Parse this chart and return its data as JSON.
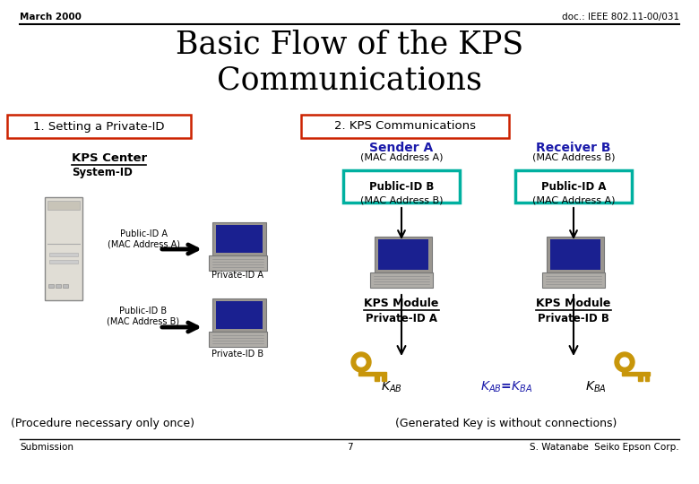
{
  "bg_color": "#ffffff",
  "title_line1": "Basic Flow of the KPS",
  "title_line2": "Communications",
  "header_left": "March 2000",
  "header_right": "doc.: IEEE 802.11-00/031",
  "section1_label": "1. Setting a Private-ID",
  "section2_label": "2. KPS Communications",
  "kps_center_label": "KPS Center",
  "system_id_label": "System-ID",
  "sender_label": "Sender A",
  "sender_mac": "(MAC Address A)",
  "receiver_label": "Receiver B",
  "receiver_mac": "(MAC Address B)",
  "pub_id_b_line1": "Public-ID B",
  "pub_id_b_line2": "(MAC Address B)",
  "pub_id_a_line1": "Public-ID A",
  "pub_id_a_line2": "(MAC Address A)",
  "kps_module": "KPS Module",
  "private_id_a": "Private-ID A",
  "private_id_b": "Private-ID B",
  "footer_left": "Submission",
  "footer_center": "7",
  "footer_right": "S. Watanabe  Seiko Epson Corp.",
  "proc_note": "(Procedure necessary only once)",
  "gen_key_note": "(Generated Key is without connections)",
  "left_pub_a": "Public-ID A\n(MAC Address A)",
  "left_pub_b": "Public-ID B\n(MAC Address B)",
  "private_id_a_lbl": "Private-ID A",
  "private_id_b_lbl": "Private-ID B",
  "teal_color": "#00b0a0",
  "red_color": "#cc2200",
  "blue_color": "#1a1aaa",
  "arrow_color": "#111111",
  "key_color": "#c8960a"
}
